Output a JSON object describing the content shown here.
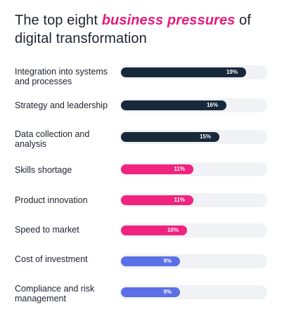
{
  "title": {
    "prefix": "The top eight ",
    "highlight": "business pressures",
    "suffix": " of digital transformation"
  },
  "colors": {
    "dark": "#17293a",
    "pink": "#f0237e",
    "blue": "#5b6fe6",
    "track": "#f1f2f5",
    "highlight": "#e8197a"
  },
  "chart_data": {
    "type": "bar",
    "orientation": "horizontal",
    "categories": [
      "Integration into systems and processes",
      "Strategy and leadership",
      "Data collection and analysis",
      "Skills shortage",
      "Product innovation",
      "Speed to market",
      "Cost of investment",
      "Compliance and risk management"
    ],
    "values": [
      19,
      16,
      15,
      11,
      11,
      10,
      9,
      9
    ],
    "value_labels": [
      "19%",
      "16%",
      "15%",
      "11%",
      "11%",
      "10%",
      "9%",
      "9%"
    ],
    "bar_colors": [
      "dark",
      "dark",
      "dark",
      "pink",
      "pink",
      "pink",
      "blue",
      "blue"
    ],
    "xlim": [
      0,
      22
    ],
    "grid": false,
    "legend": "none"
  }
}
